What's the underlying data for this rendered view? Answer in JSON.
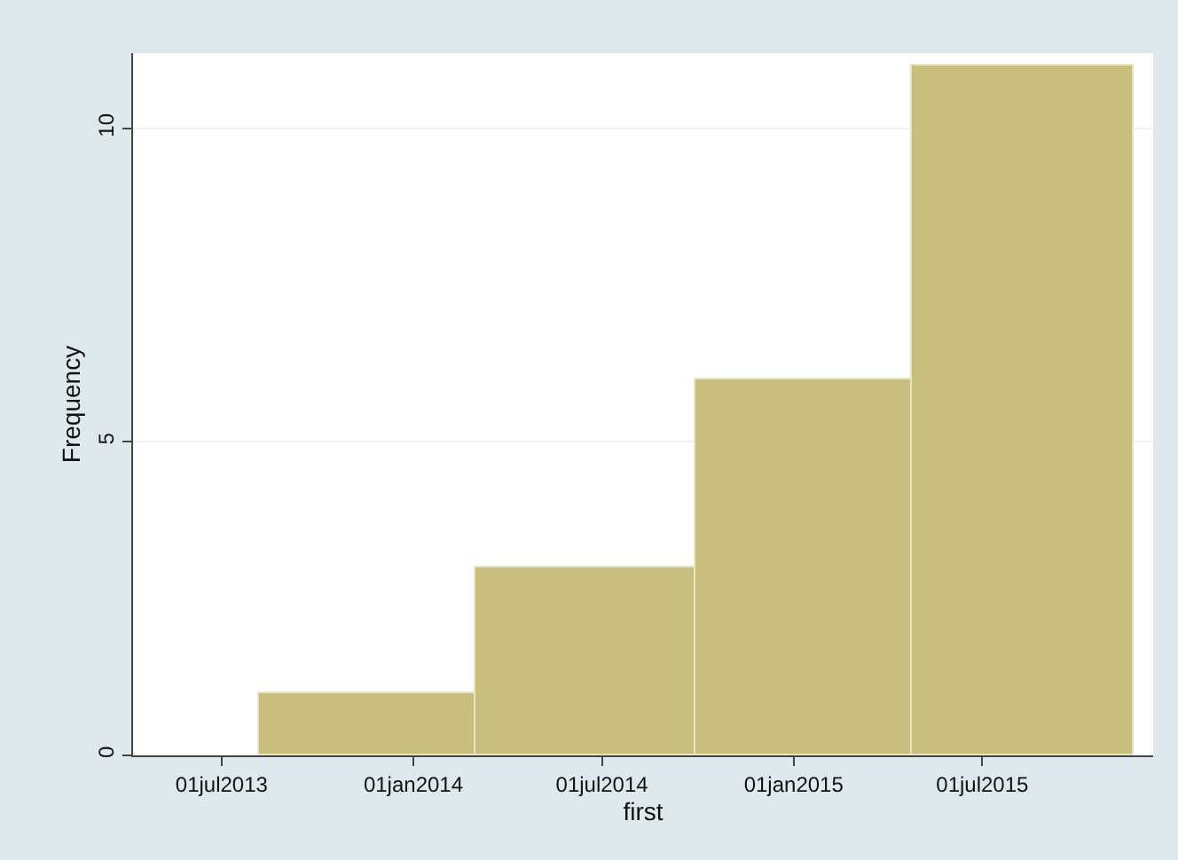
{
  "chart_data": {
    "type": "histogram",
    "xlabel": "first",
    "ylabel": "Frequency",
    "bins": [
      "2013-08-06",
      "2014-03-02",
      "2014-09-29",
      "2015-04-25",
      "2015-11-24"
    ],
    "values": [
      1,
      3,
      6,
      11
    ],
    "color": "#c6be7a",
    "xlim": [
      "2013-04-07",
      "2015-12-12"
    ],
    "xticks": [
      {
        "value": "2013-07-01",
        "label": "01jul2013"
      },
      {
        "value": "2014-01-01",
        "label": "01jan2014"
      },
      {
        "value": "2014-07-01",
        "label": "01jul2014"
      },
      {
        "value": "2015-01-01",
        "label": "01jan2015"
      },
      {
        "value": "2015-07-01",
        "label": "01jul2015"
      }
    ],
    "ylim": [
      0,
      11.2
    ],
    "yticks": [
      0,
      5,
      10
    ],
    "grid": "y"
  }
}
